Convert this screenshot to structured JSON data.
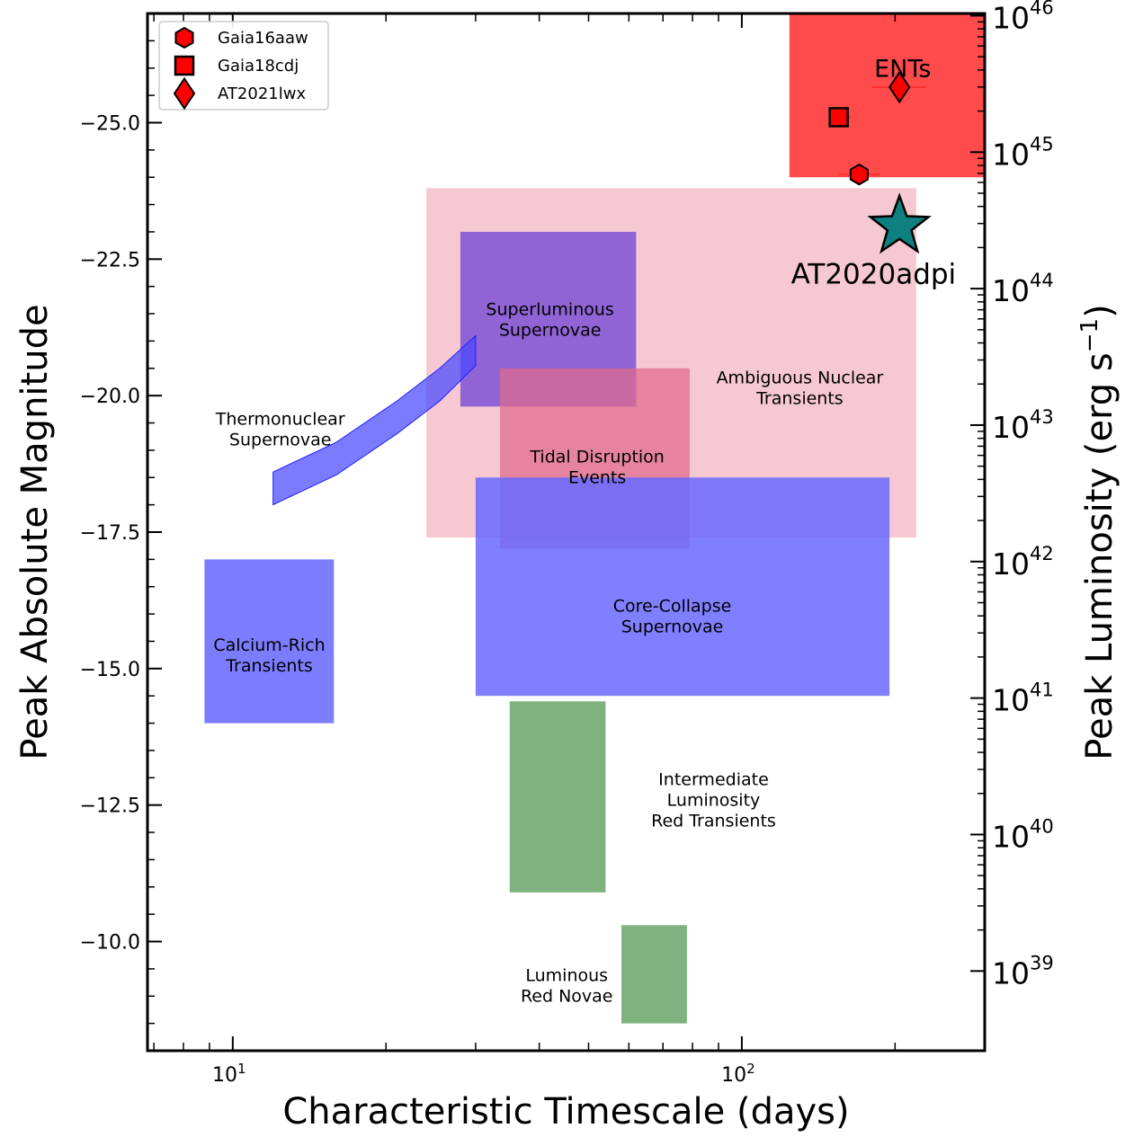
{
  "chart_data": {
    "type": "scatter",
    "xlabel": "Characteristic Timescale (days)",
    "ylabel": "Peak Absolute Magnitude",
    "y2label": "Peak Luminosity (erg s",
    "y2label_sup": "−1",
    "y2label_close": ")",
    "xscale": "log",
    "xlim": [
      6.8,
      300
    ],
    "ylim": [
      -8.0,
      -27.0
    ],
    "x_ticks": [
      {
        "value": 10,
        "base": "10",
        "exp": "1"
      },
      {
        "value": 100,
        "base": "10",
        "exp": "2"
      }
    ],
    "y_ticks": [
      {
        "value": -25.0,
        "label": "−25.0"
      },
      {
        "value": -22.5,
        "label": "−22.5"
      },
      {
        "value": -20.0,
        "label": "−20.0"
      },
      {
        "value": -17.5,
        "label": "−17.5"
      },
      {
        "value": -15.0,
        "label": "−15.0"
      },
      {
        "value": -12.5,
        "label": "−12.5"
      },
      {
        "value": -10.0,
        "label": "−10.0"
      }
    ],
    "y2_ticks": [
      {
        "exp": "39",
        "mag": -9.46
      },
      {
        "exp": "40",
        "mag": -11.96
      },
      {
        "exp": "41",
        "mag": -14.46
      },
      {
        "exp": "42",
        "mag": -16.96
      },
      {
        "exp": "43",
        "mag": -19.46
      },
      {
        "exp": "44",
        "mag": -21.96
      },
      {
        "exp": "45",
        "mag": -24.46
      },
      {
        "exp": "46",
        "mag": -26.96
      }
    ],
    "regions": [
      {
        "name": "Ambiguous Nuclear Transients",
        "lines": [
          "Ambiguous Nuclear",
          "Transients"
        ],
        "x": [
          24,
          220
        ],
        "y": [
          -17.4,
          -23.8
        ],
        "color": "#f5c8d2",
        "opacity": 1,
        "label_at": [
          130,
          -20.15
        ]
      },
      {
        "name": "Superluminous Supernovae",
        "lines": [
          "Superluminous",
          "Supernovae"
        ],
        "x": [
          28,
          62
        ],
        "y": [
          -19.8,
          -23.0
        ],
        "color": "#8b5fd6",
        "opacity": 0.95,
        "label_at": [
          42,
          -21.4
        ]
      },
      {
        "name": "Tidal Disruption Events",
        "lines": [
          "Tidal Disruption",
          "Events"
        ],
        "x": [
          33.5,
          79
        ],
        "y": [
          -17.2,
          -20.5
        ],
        "color": "#e06a8c",
        "opacity": 0.72,
        "label_at": [
          52,
          -18.7
        ]
      },
      {
        "name": "Core-Collapse Supernovae",
        "lines": [
          "Core-Collapse",
          "Supernovae"
        ],
        "x": [
          30,
          195
        ],
        "y": [
          -14.5,
          -18.5
        ],
        "color": "#6a6aff",
        "opacity": 0.86,
        "label_at": [
          73,
          -15.97
        ]
      },
      {
        "name": "Calcium-Rich Transients",
        "lines": [
          "Calcium-Rich",
          "Transients"
        ],
        "x": [
          8.8,
          15.8
        ],
        "y": [
          -14.0,
          -17.0
        ],
        "color": "#7c7cff",
        "opacity": 1,
        "label_at": [
          11.8,
          -15.25
        ]
      },
      {
        "name": "Intermediate Luminosity Red Transients",
        "lines": [
          "Intermediate",
          "Luminosity",
          "Red Transients"
        ],
        "x": [
          35,
          54
        ],
        "y": [
          -10.9,
          -14.4
        ],
        "color": "#80b280",
        "opacity": 1,
        "label_at": [
          88,
          -12.6
        ],
        "anchor": "middle"
      },
      {
        "name": "Luminous Red Novae",
        "lines": [
          "Luminous",
          "Red Novae"
        ],
        "x": [
          58,
          78
        ],
        "y": [
          -8.5,
          -10.3
        ],
        "color": "#80b280",
        "opacity": 1,
        "label_at": [
          45.3,
          -9.2
        ],
        "anchor": "middle"
      },
      {
        "name": "ENTs",
        "lines": [],
        "x": [
          124,
          300
        ],
        "y": [
          -24.0,
          -27.0
        ],
        "color": "#ff4b4b",
        "opacity": 1
      }
    ],
    "band": {
      "name": "Thermonuclear Supernovae",
      "lines": [
        "Thermonuclear",
        "Supernovae"
      ],
      "label_at": [
        12.4,
        -19.4
      ],
      "upper": [
        [
          12,
          -18.6
        ],
        [
          16,
          -19.15
        ],
        [
          21,
          -19.9
        ],
        [
          25.5,
          -20.5
        ],
        [
          30,
          -21.1
        ]
      ],
      "lower": [
        [
          12,
          -18.0
        ],
        [
          16,
          -18.55
        ],
        [
          21,
          -19.3
        ],
        [
          25.5,
          -19.9
        ],
        [
          30,
          -20.55
        ]
      ],
      "color": "#4848ff",
      "opacity": 0.72
    },
    "ents_label": "ENTs",
    "ents_label_at": [
      207,
      -26.0
    ],
    "points": [
      {
        "name": "Gaia16aaw",
        "marker": "hexagon",
        "x": 170,
        "y": -24.05,
        "xerr": [
          155,
          187
        ],
        "color": "#ff0000"
      },
      {
        "name": "Gaia18cdj",
        "marker": "square",
        "x": 155,
        "y": -25.1,
        "xerr": [
          148,
          164
        ],
        "color": "#ff0000"
      },
      {
        "name": "AT2021lwx",
        "marker": "diamond",
        "x": 204,
        "y": -25.65,
        "xerr": [
          180,
          230
        ],
        "color": "#ff0000"
      }
    ],
    "star": {
      "name": "AT2020adpi",
      "x": 204,
      "y": -23.1,
      "color": "#0e8080"
    },
    "star_label_at": [
      205,
      -22.45
    ],
    "legend": [
      "Gaia16aaw",
      "Gaia18cdj",
      "AT2021lwx"
    ],
    "legend_position": "top-left",
    "grid": false
  }
}
